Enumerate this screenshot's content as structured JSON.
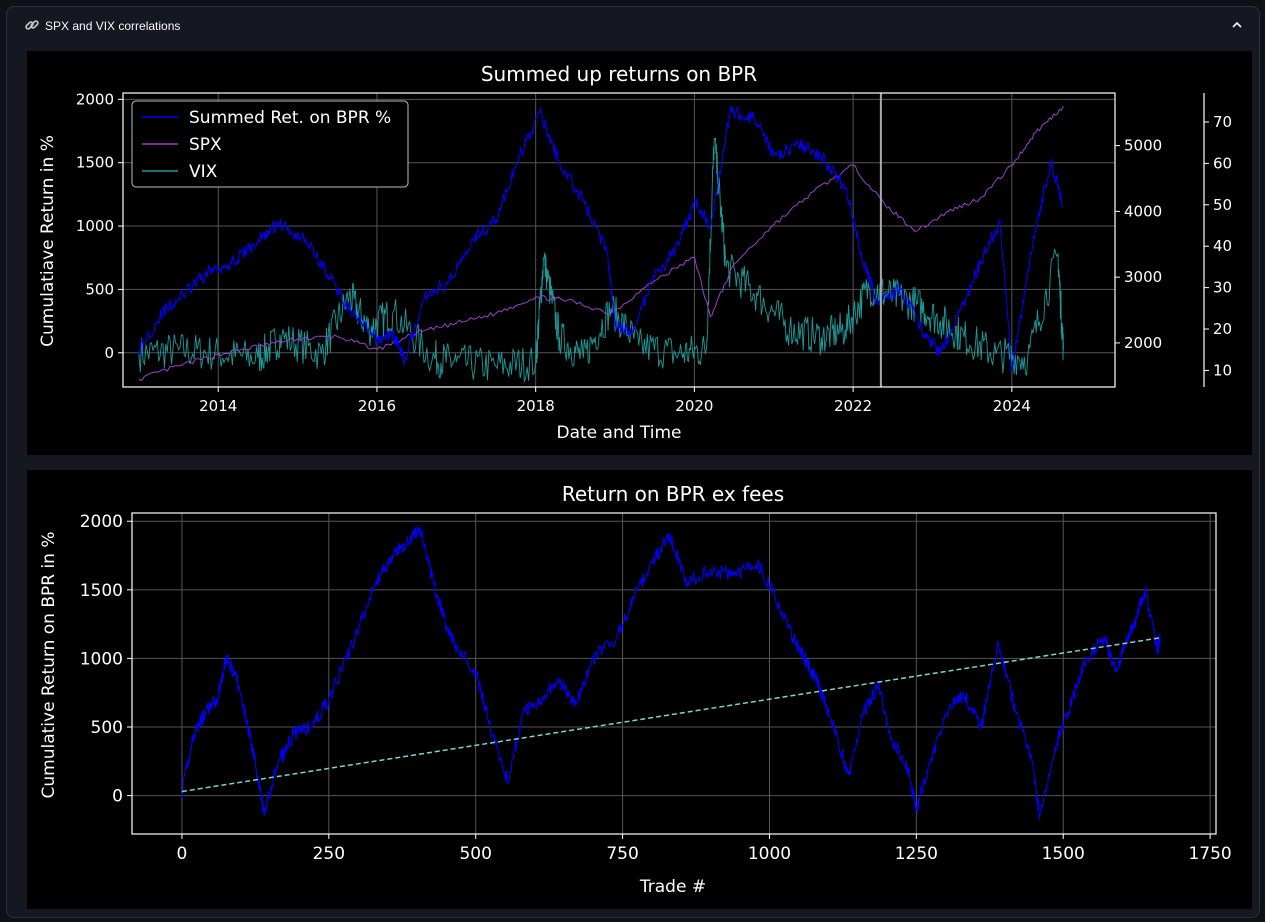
{
  "panel": {
    "title": "SPX and VIX correlations",
    "icons": {
      "title": "link-icon",
      "collapse": "chevron-up-icon"
    }
  },
  "colors": {
    "page_bg": "#0e1117",
    "figure_bg": "#000000",
    "bpr": "#0000ff",
    "spx": "#9b3fc9",
    "vix": "#1c9a9a",
    "trend": "#7fd3d3",
    "grid": "#555555"
  },
  "chart_data": [
    {
      "type": "line",
      "title": "Summed up returns on BPR",
      "xlabel": "Date and Time",
      "ylabel": "Cumulatiave Return in %",
      "xlim": [
        2012.8,
        2025.3
      ],
      "ylim": [
        -270,
        2050
      ],
      "y2lim": [
        1330,
        5800
      ],
      "y3lim": [
        6,
        77
      ],
      "x_ticks": [
        "2014",
        "2016",
        "2018",
        "2020",
        "2022",
        "2024"
      ],
      "y_ticks": [
        "0",
        "500",
        "1000",
        "1500",
        "2000"
      ],
      "y2_ticks": [
        "2000",
        "3000",
        "4000",
        "5000"
      ],
      "y3_ticks": [
        "10",
        "20",
        "30",
        "40",
        "50",
        "60",
        "70"
      ],
      "grid": true,
      "legend_position": "top-left",
      "vline_x": 2022.35,
      "series": [
        {
          "name": "Summed Ret. on BPR %",
          "axis": "left",
          "x": [
            2013.0,
            2013.3,
            2013.6,
            2013.9,
            2014.2,
            2014.5,
            2014.75,
            2015.1,
            2015.4,
            2015.7,
            2016.0,
            2016.2,
            2016.35,
            2016.6,
            2016.9,
            2017.2,
            2017.5,
            2017.8,
            2018.05,
            2018.3,
            2018.6,
            2018.9,
            2019.0,
            2019.2,
            2019.5,
            2019.8,
            2020.0,
            2020.2,
            2020.45,
            2020.75,
            2021.0,
            2021.3,
            2021.6,
            2021.9,
            2022.1,
            2022.3,
            2022.6,
            2022.9,
            2023.1,
            2023.4,
            2023.6,
            2023.85,
            2024.0,
            2024.3,
            2024.5,
            2024.65
          ],
          "values": [
            20,
            320,
            480,
            650,
            720,
            880,
            1020,
            900,
            600,
            300,
            100,
            150,
            -50,
            450,
            550,
            900,
            1050,
            1550,
            1900,
            1500,
            1200,
            800,
            250,
            150,
            600,
            850,
            1200,
            1000,
            1900,
            1850,
            1550,
            1650,
            1550,
            1300,
            800,
            400,
            500,
            150,
            0,
            400,
            700,
            1050,
            -150,
            1000,
            1500,
            1150
          ]
        },
        {
          "name": "SPX",
          "axis": "right",
          "x": [
            2013.0,
            2013.5,
            2014.0,
            2014.5,
            2015.0,
            2015.5,
            2016.0,
            2016.5,
            2017.0,
            2017.5,
            2018.0,
            2018.4,
            2018.95,
            2019.5,
            2020.0,
            2020.2,
            2020.5,
            2021.0,
            2021.5,
            2022.0,
            2022.4,
            2022.8,
            2023.2,
            2023.6,
            2024.0,
            2024.3,
            2024.65
          ],
          "values": [
            1450,
            1650,
            1820,
            1950,
            2060,
            2100,
            1900,
            2150,
            2300,
            2450,
            2700,
            2650,
            2450,
            2950,
            3300,
            2400,
            3200,
            3800,
            4300,
            4700,
            4100,
            3700,
            4000,
            4200,
            4700,
            5200,
            5600
          ]
        },
        {
          "name": "VIX",
          "axis": "far-right",
          "x": [
            2013.0,
            2013.5,
            2014.0,
            2014.5,
            2014.8,
            2015.3,
            2015.65,
            2015.9,
            2016.2,
            2016.7,
            2017.0,
            2017.5,
            2018.0,
            2018.1,
            2018.3,
            2018.6,
            2018.95,
            2019.3,
            2019.8,
            2020.15,
            2020.25,
            2020.4,
            2020.8,
            2021.2,
            2021.6,
            2021.9,
            2022.2,
            2022.5,
            2022.8,
            2023.1,
            2023.4,
            2023.8,
            2024.2,
            2024.58,
            2024.65
          ],
          "values": [
            14,
            15,
            14,
            13,
            18,
            14,
            28,
            20,
            24,
            13,
            12,
            11,
            12,
            37,
            18,
            13,
            25,
            16,
            14,
            15,
            66,
            35,
            28,
            20,
            18,
            20,
            30,
            28,
            26,
            22,
            18,
            14,
            13,
            38,
            15
          ]
        }
      ]
    },
    {
      "type": "line",
      "title": "Return on BPR ex fees",
      "xlabel": "Trade #",
      "ylabel": "Cumulative Return on BPR in %",
      "xlim": [
        -85,
        1760
      ],
      "ylim": [
        -280,
        2060
      ],
      "x_ticks": [
        "0",
        "250",
        "500",
        "750",
        "1000",
        "1250",
        "1500",
        "1750"
      ],
      "y_ticks": [
        "0",
        "500",
        "1000",
        "1500",
        "2000"
      ],
      "grid": true,
      "series": [
        {
          "name": "",
          "x": [
            0,
            20,
            40,
            60,
            75,
            90,
            110,
            125,
            140,
            160,
            190,
            220,
            250,
            290,
            330,
            360,
            385,
            405,
            425,
            445,
            465,
            500,
            525,
            555,
            580,
            610,
            640,
            670,
            700,
            740,
            770,
            800,
            830,
            860,
            900,
            940,
            980,
            1010,
            1040,
            1060,
            1080,
            1105,
            1135,
            1160,
            1185,
            1210,
            1235,
            1250,
            1270,
            1300,
            1330,
            1360,
            1390,
            1420,
            1445,
            1460,
            1490,
            1515,
            1540,
            1570,
            1590,
            1605,
            1625,
            1640,
            1660,
            1665
          ],
          "values": [
            20,
            450,
            600,
            700,
            1000,
            900,
            550,
            250,
            -150,
            200,
            450,
            500,
            700,
            1100,
            1550,
            1750,
            1850,
            1950,
            1600,
            1300,
            1100,
            900,
            500,
            100,
            600,
            700,
            850,
            650,
            1000,
            1150,
            1450,
            1700,
            1900,
            1550,
            1650,
            1600,
            1700,
            1450,
            1150,
            1000,
            850,
            550,
            150,
            600,
            800,
            400,
            200,
            -100,
            200,
            600,
            750,
            500,
            1100,
            600,
            300,
            -150,
            400,
            700,
            1000,
            1150,
            900,
            1100,
            1300,
            1500,
            1050,
            1150
          ]
        },
        {
          "name": "",
          "x": [
            0,
            1665
          ],
          "values": [
            30,
            1150
          ]
        }
      ]
    }
  ]
}
